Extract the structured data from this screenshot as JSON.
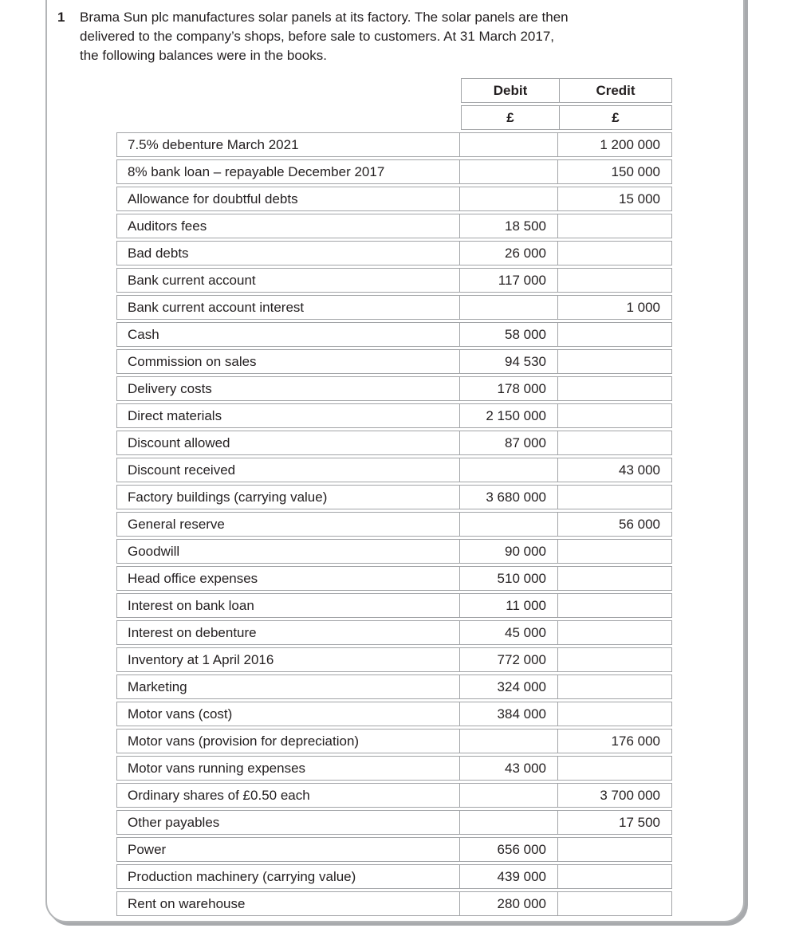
{
  "question": {
    "number": "1",
    "lines": [
      "Brama Sun plc manufactures solar panels at its factory. The solar panels are then",
      "delivered to the company’s shops, before sale to customers. At 31 March 2017,",
      "the following balances were in the books."
    ]
  },
  "table": {
    "columns": [
      {
        "label": "Debit",
        "currency": "£"
      },
      {
        "label": "Credit",
        "currency": "£"
      }
    ],
    "rows": [
      {
        "account": "7.5% debenture March 2021",
        "debit": "",
        "credit": "1 200 000"
      },
      {
        "account": "8% bank loan – repayable December 2017",
        "debit": "",
        "credit": "150 000"
      },
      {
        "account": "Allowance for doubtful debts",
        "debit": "",
        "credit": "15 000"
      },
      {
        "account": "Auditors fees",
        "debit": "18 500",
        "credit": ""
      },
      {
        "account": "Bad debts",
        "debit": "26 000",
        "credit": ""
      },
      {
        "account": "Bank current account",
        "debit": "117 000",
        "credit": ""
      },
      {
        "account": "Bank current account interest",
        "debit": "",
        "credit": "1 000"
      },
      {
        "account": "Cash",
        "debit": "58 000",
        "credit": ""
      },
      {
        "account": "Commission on sales",
        "debit": "94 530",
        "credit": ""
      },
      {
        "account": "Delivery costs",
        "debit": "178 000",
        "credit": ""
      },
      {
        "account": "Direct materials",
        "debit": "2 150 000",
        "credit": ""
      },
      {
        "account": "Discount allowed",
        "debit": "87 000",
        "credit": ""
      },
      {
        "account": "Discount received",
        "debit": "",
        "credit": "43 000"
      },
      {
        "account": "Factory buildings (carrying value)",
        "debit": "3 680 000",
        "credit": ""
      },
      {
        "account": "General reserve",
        "debit": "",
        "credit": "56 000"
      },
      {
        "account": "Goodwill",
        "debit": "90 000",
        "credit": ""
      },
      {
        "account": "Head office expenses",
        "debit": "510 000",
        "credit": ""
      },
      {
        "account": "Interest on bank loan",
        "debit": "11 000",
        "credit": ""
      },
      {
        "account": "Interest on debenture",
        "debit": "45 000",
        "credit": ""
      },
      {
        "account": "Inventory at 1 April 2016",
        "debit": "772 000",
        "credit": ""
      },
      {
        "account": "Marketing",
        "debit": "324 000",
        "credit": ""
      },
      {
        "account": "Motor vans (cost)",
        "debit": "384 000",
        "credit": ""
      },
      {
        "account": "Motor vans (provision for depreciation)",
        "debit": "",
        "credit": "176 000"
      },
      {
        "account": "Motor vans running expenses",
        "debit": "43 000",
        "credit": ""
      },
      {
        "account": "Ordinary shares of £0.50 each",
        "debit": "",
        "credit": "3 700 000"
      },
      {
        "account": "Other payables",
        "debit": "",
        "credit": "17 500"
      },
      {
        "account": "Power",
        "debit": "656 000",
        "credit": ""
      },
      {
        "account": "Production machinery (carrying value)",
        "debit": "439 000",
        "credit": ""
      },
      {
        "account": "Rent on warehouse",
        "debit": "280 000",
        "credit": ""
      }
    ]
  }
}
